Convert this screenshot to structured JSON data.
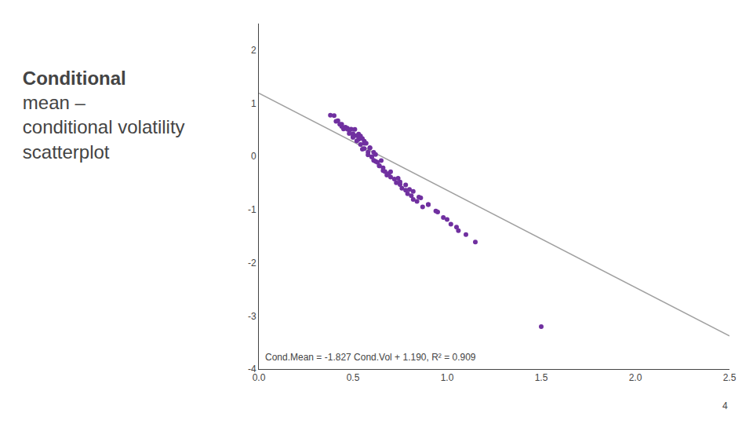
{
  "chart_data": {
    "type": "scatter",
    "title": "Conditional\nmean –\nconditional volatility\nscatterplot",
    "annotations": [
      "Cond.Mean = -1.827 Cond.Vol + 1.190, R² = 0.909",
      "4"
    ],
    "xlim": [
      0,
      2.5
    ],
    "ylim": [
      -4,
      2.5
    ],
    "xticks": [
      {
        "value": 0,
        "label": "0.0"
      },
      0.5,
      {
        "value": 1,
        "label": "1.0"
      },
      1.5,
      {
        "value": 2,
        "label": "2.0"
      },
      2.5
    ],
    "yticks": [
      -4,
      -3,
      -2,
      -1,
      0,
      1,
      2
    ],
    "grid": false,
    "series": [
      {
        "type": "scatter",
        "marker": "circle",
        "color": "#7030A0",
        "x": [
          0.38,
          0.4,
          0.42,
          0.44,
          0.46,
          0.48,
          0.5,
          0.52,
          0.54,
          0.56,
          0.43,
          0.45,
          0.47,
          0.49,
          0.51,
          0.53,
          0.55,
          0.57,
          0.59,
          0.61,
          0.41,
          0.44,
          0.47,
          0.5,
          0.53,
          0.56,
          0.59,
          0.62,
          0.65,
          0.48,
          0.5,
          0.52,
          0.54,
          0.56,
          0.58,
          0.6,
          0.62,
          0.64,
          0.66,
          0.68,
          0.55,
          0.58,
          0.61,
          0.64,
          0.67,
          0.7,
          0.73,
          0.76,
          0.79,
          0.82,
          0.6,
          0.63,
          0.66,
          0.69,
          0.72,
          0.75,
          0.78,
          0.81,
          0.84,
          0.87,
          0.7,
          0.74,
          0.78,
          0.82,
          0.86,
          0.9,
          0.94,
          0.98,
          1.02,
          1.06,
          0.75,
          0.8,
          0.85,
          0.9,
          0.95,
          1.0,
          1.05,
          1.1,
          1.15,
          1.5
        ],
        "values": [
          0.77574,
          0.7692,
          0.67266,
          0.60612,
          0.54958,
          0.49304,
          0.3765,
          0.38996,
          0.38342,
          0.28688,
          0.60439,
          0.51785,
          0.51131,
          0.51477,
          0.50823,
          0.42169,
          0.33515,
          0.24861,
          0.16207,
          0.07553,
          0.66093,
          0.56612,
          0.53131,
          0.4265,
          0.32169,
          0.24688,
          0.16207,
          0.03726,
          -0.07755,
          0.43304,
          0.3565,
          0.28996,
          0.22342,
          0.14688,
          0.08034,
          -0.0062,
          -0.09274,
          -0.17928,
          -0.26582,
          -0.35236,
          0.13515,
          0.03034,
          -0.07447,
          -0.17928,
          -0.28409,
          -0.3889,
          -0.49371,
          -0.59852,
          -0.70333,
          -0.80814,
          -0.0062,
          -0.11101,
          -0.21582,
          -0.32063,
          -0.42544,
          -0.53025,
          -0.63506,
          -0.73987,
          -0.84468,
          -0.94949,
          -0.2889,
          -0.41198,
          -0.53506,
          -0.65814,
          -0.78122,
          -0.9043,
          -1.02738,
          -1.15046,
          -1.27354,
          -1.39662,
          -0.48025,
          -0.6216,
          -0.76295,
          -0.9043,
          -1.04565,
          -1.187,
          -1.32835,
          -1.4697,
          -1.61105,
          -3.2005
        ]
      },
      {
        "type": "line",
        "line_style": "solid",
        "color": "#A0A0A0",
        "x": [
          0,
          2.5
        ],
        "values": [
          1.19,
          -3.3775
        ]
      }
    ]
  }
}
